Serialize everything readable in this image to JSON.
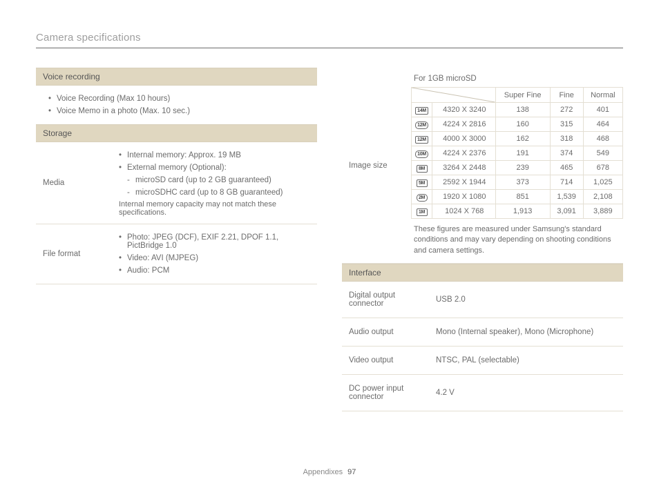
{
  "page": {
    "title": "Camera specifications",
    "footer_label": "Appendixes",
    "footer_page": "97"
  },
  "left": {
    "voice_header": "Voice recording",
    "voice_items": [
      "Voice Recording (Max 10 hours)",
      "Voice Memo in a photo (Max. 10 sec.)"
    ],
    "storage_header": "Storage",
    "media_label": "Media",
    "media_items": {
      "b0": "Internal memory: Approx. 19 MB",
      "b1": "External memory (Optional):",
      "d0": "microSD card (up to 2 GB guaranteed)",
      "d1": "microSDHC card (up to 8 GB guaranteed)"
    },
    "media_note": "Internal memory capacity may not match these specifications.",
    "fileformat_label": "File format",
    "fileformat_items": {
      "b0": "Photo: JPEG (DCF), EXIF 2.21, DPOF 1.1, PictBridge 1.0",
      "b1": "Video: AVI (MJPEG)",
      "b2": "Audio: PCM"
    }
  },
  "right": {
    "imagesize_label": "Image size",
    "caption": "For 1GB microSD",
    "headers": {
      "c1": "Super Fine",
      "c2": "Fine",
      "c3": "Normal"
    },
    "rows": [
      {
        "icon": "14M",
        "res": "4320 X 3240",
        "sf": "138",
        "f": "272",
        "n": "401"
      },
      {
        "icon": "12M",
        "res": "4224 X 2816",
        "sf": "160",
        "f": "315",
        "n": "464",
        "rounded": true
      },
      {
        "icon": "12M",
        "res": "4000 X 3000",
        "sf": "162",
        "f": "318",
        "n": "468"
      },
      {
        "icon": "10M",
        "res": "4224 X 2376",
        "sf": "191",
        "f": "374",
        "n": "549",
        "rounded": true
      },
      {
        "icon": "8M",
        "res": "3264 X 2448",
        "sf": "239",
        "f": "465",
        "n": "678"
      },
      {
        "icon": "5M",
        "res": "2592 X 1944",
        "sf": "373",
        "f": "714",
        "n": "1,025"
      },
      {
        "icon": "2M",
        "res": "1920 X 1080",
        "sf": "851",
        "f": "1,539",
        "n": "2,108",
        "rounded": true
      },
      {
        "icon": "1M",
        "res": "1024 X 768",
        "sf": "1,913",
        "f": "3,091",
        "n": "3,889"
      }
    ],
    "footnote": "These figures are measured under Samsung's standard conditions and may vary depending on shooting conditions and camera settings.",
    "interface_header": "Interface",
    "interface_rows": [
      {
        "label": "Digital output connector",
        "value": "USB 2.0"
      },
      {
        "label": "Audio output",
        "value": "Mono (Internal speaker), Mono (Microphone)"
      },
      {
        "label": "Video output",
        "value": "NTSC, PAL (selectable)"
      },
      {
        "label": "DC power input connector",
        "value": "4.2 V"
      }
    ]
  },
  "style": {
    "header_bg": "#e0d7c0",
    "border_color": "#e4dfd3",
    "text_color": "#6b6b6b"
  }
}
